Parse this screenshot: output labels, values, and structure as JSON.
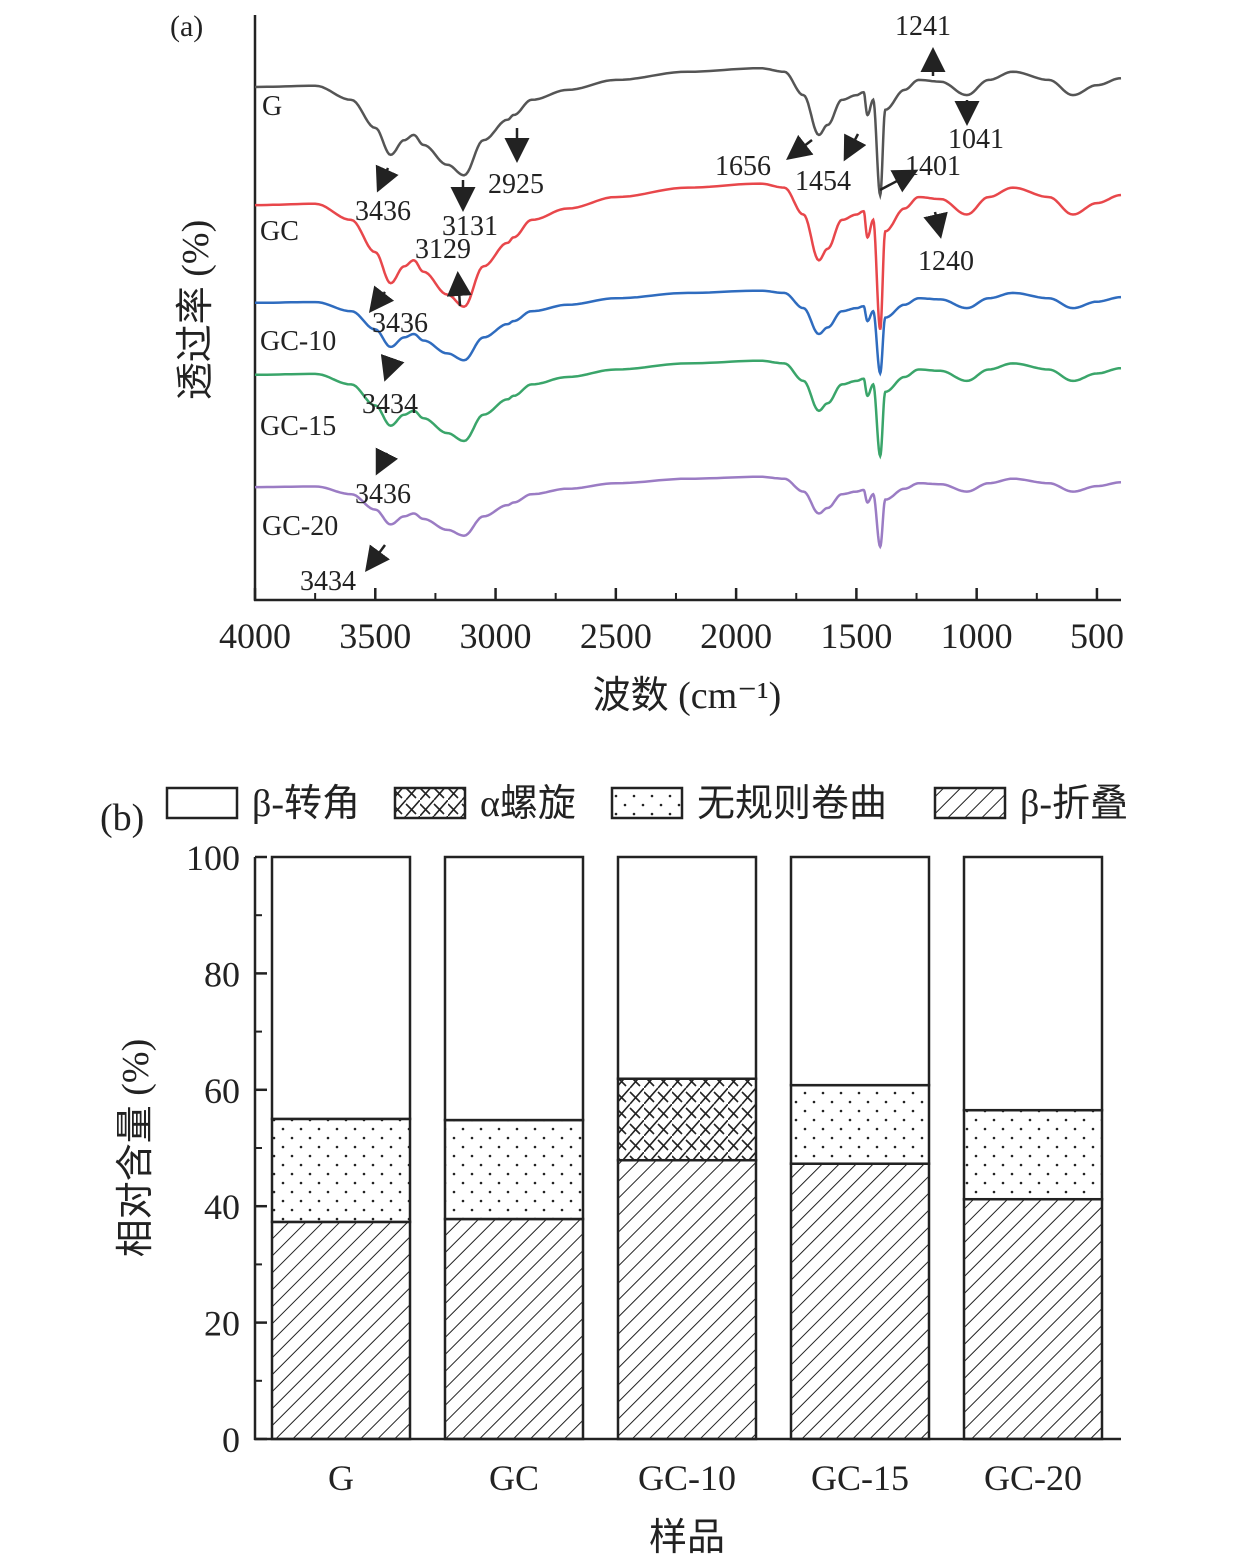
{
  "chart_data": [
    {
      "type": "line",
      "panel_label": "(a)",
      "xlabel": "波数 (cm⁻¹)",
      "ylabel": "透过率 (%)",
      "xlim": [
        4000,
        400
      ],
      "xticks": [
        4000,
        3500,
        3000,
        2500,
        2000,
        1500,
        1000,
        500
      ],
      "ylim": [
        0,
        100
      ],
      "grid": false,
      "shape": {
        "wavenumber": [
          4000,
          3750,
          3600,
          3500,
          3436,
          3380,
          3340,
          3300,
          3200,
          3131,
          3050,
          2950,
          2925,
          2850,
          2700,
          2500,
          2200,
          1900,
          1800,
          1720,
          1656,
          1620,
          1560,
          1500,
          1470,
          1454,
          1430,
          1401,
          1380,
          1300,
          1241,
          1150,
          1041,
          950,
          850,
          700,
          600,
          500,
          400
        ],
        "delta": [
          0,
          0.2,
          -2.2,
          -7,
          -11.6,
          -9.1,
          -8.2,
          -9.9,
          -13.3,
          -15.1,
          -9.1,
          -5.6,
          -4.8,
          -2.2,
          -0.5,
          1.2,
          2.6,
          3.2,
          2.6,
          -1.4,
          -8.2,
          -6.5,
          -2.2,
          -1.4,
          -0.9,
          -4.8,
          -2.2,
          -18.5,
          -3.9,
          -0.5,
          1.2,
          0.9,
          -1.4,
          1.2,
          2.6,
          1.2,
          -1.4,
          0.3,
          1.5
        ]
      },
      "series": [
        {
          "name": "G",
          "baseline": 87.7,
          "scale": 1.0,
          "color": "#555555"
        },
        {
          "name": "GC",
          "baseline": 67.5,
          "scale": 1.15,
          "color": "#e8474b"
        },
        {
          "name": "GC-10",
          "baseline": 50.8,
          "scale": 0.65,
          "color": "#2f6cbf"
        },
        {
          "name": "GC-15",
          "baseline": 38.5,
          "scale": 0.75,
          "color": "#3aa56a"
        },
        {
          "name": "GC-20",
          "baseline": 19.3,
          "scale": 0.55,
          "color": "#9b7cc4"
        }
      ],
      "annotations": [
        "1241",
        "1041",
        "1656",
        "1454",
        "1401",
        "3436",
        "3131",
        "2925",
        "3129",
        "1240",
        "3436",
        "3434",
        "3436",
        "3434"
      ]
    },
    {
      "type": "bar",
      "stacked": true,
      "panel_label": "(b)",
      "xlabel": "样品",
      "ylabel": "相对含量 (%)",
      "ylim": [
        0,
        100
      ],
      "yticks": [
        0,
        20,
        40,
        60,
        80,
        100
      ],
      "categories": [
        "G",
        "GC",
        "GC-10",
        "GC-15",
        "GC-20"
      ],
      "legend_position": "top",
      "series": [
        {
          "name": "β-折叠",
          "pattern": "diagonal-hatch",
          "values": [
            37.3,
            37.8,
            47.9,
            47.3,
            41.2
          ]
        },
        {
          "name": "无规则卷曲",
          "pattern": "dots",
          "values": [
            17.7,
            17.0,
            0,
            13.5,
            15.3
          ]
        },
        {
          "name": "α螺旋",
          "pattern": "cross-hatch",
          "values": [
            0,
            0,
            14.0,
            0,
            0
          ]
        },
        {
          "name": "β-转角",
          "pattern": "blank",
          "values": [
            45.0,
            45.2,
            38.1,
            39.2,
            43.5
          ]
        }
      ],
      "legend": [
        "β-转角",
        "α螺旋",
        "无规则卷曲",
        "β-折叠"
      ]
    }
  ]
}
